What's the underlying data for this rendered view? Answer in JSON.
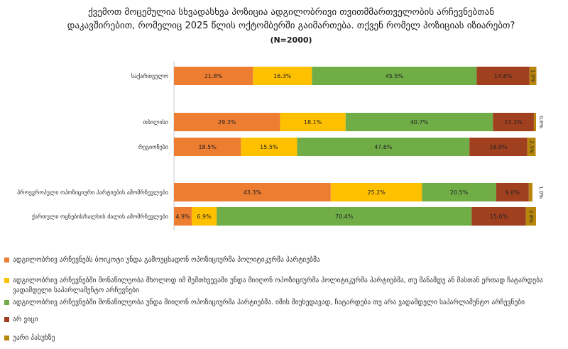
{
  "title": {
    "line1": "ქვემოთ მოცემულია სხვადასხვა პოზიცია ადგილობრივი თვითმმართველობის არჩევნებთან",
    "line2": "დაკავშირებით, რომელიც 2025 წლის ოქტომბერში გაიმართება. თქვენ რომელ პოზიციას იზიარებთ?",
    "n": "(N=2000)"
  },
  "colors": {
    "orange": "#ED7D31",
    "yellow": "#FFC000",
    "green": "#70AD47",
    "red": "#A0401F",
    "gold": "#B8860B"
  },
  "chart_data": {
    "type": "bar",
    "orientation": "horizontal",
    "stacked": true,
    "categories": [
      "საქართველო",
      "თბილისი",
      "რეგიონები",
      "პროევროპული ოპოზიციური პარტიების ამომრჩევლები",
      "ქართული ოცნების/ხალხის ძალის ამომრჩევლები"
    ],
    "series": [
      {
        "name": "ადგილობრივ არჩევნებს ბოიკოტი უნდა გამოუცხადონ ოპოზიციურმა პოლიტიკურმა პარტიებმა",
        "color": "#ED7D31",
        "values": [
          21.8,
          29.3,
          18.5,
          43.3,
          4.9
        ],
        "labels": [
          "21.8%",
          "29.3%",
          "18.5%",
          "43.3%",
          "4.9%"
        ]
      },
      {
        "name": "ადგილობრივ არჩევნებში მონაწილეობა მხოლოდ იმ შემთხვევაში უნდა მიიღონ ოპოზიციურმა პოლიტიკურმა პარტიებმა, თუ მანამდე ან მასთან ერთად ჩატარდება ვადამდელი საპარლამენტო არჩევნები",
        "color": "#FFC000",
        "values": [
          16.3,
          18.1,
          15.5,
          25.2,
          6.9
        ],
        "labels": [
          "16.3%",
          "18.1%",
          "15.5%",
          "25.2%",
          "6.9%"
        ]
      },
      {
        "name": "ადგილობრივ არჩევნებში მონაწილეობა უნდა მიიღონ ოპოზიციურმა პარტიებმა. იმის მიუხედავად, ჩატარდება თუ არა ვადამდელი საპარლამენტო არჩევნები",
        "color": "#70AD47",
        "values": [
          45.5,
          40.7,
          47.6,
          20.5,
          70.4
        ],
        "labels": [
          "45.5%",
          "40.7%",
          "47.6%",
          "20.5%",
          "70.4%"
        ]
      },
      {
        "name": "არ ვიცი",
        "color": "#A0401F",
        "values": [
          14.6,
          11.3,
          16.0,
          9.0,
          15.0
        ],
        "labels": [
          "14.6%",
          "11.3%",
          "16.0%",
          "9.0%",
          "15.0%"
        ]
      },
      {
        "name": "უარი პასუხზე",
        "color": "#B8860B",
        "values": [
          1.9,
          0.6,
          2.3,
          1.0,
          2.8
        ],
        "labels": [
          "1.9%",
          "0.6%",
          "2.3%",
          "1.0%",
          "2.8%"
        ]
      }
    ],
    "xlim": [
      0,
      100
    ],
    "legend_position": "bottom"
  }
}
